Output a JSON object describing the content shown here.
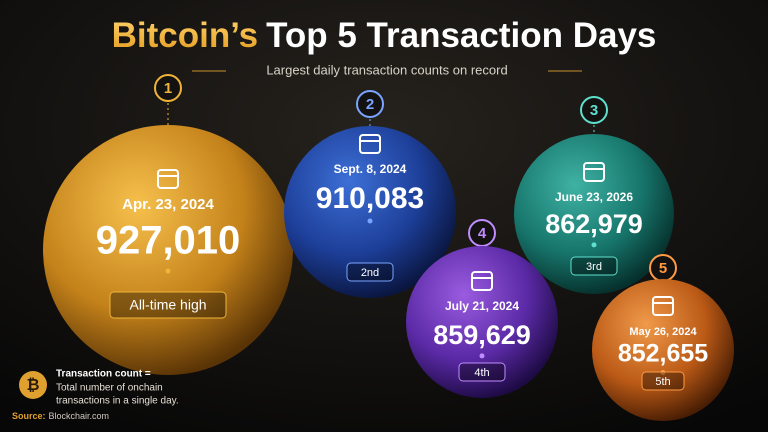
{
  "header": {
    "title_highlight": "Bitcoin’s",
    "title_rest": "Top 5 Transaction Days",
    "subtitle": "Largest daily transaction counts on record"
  },
  "items": [
    {
      "rank": "1",
      "date": "Apr. 23, 2024",
      "count": "927,010",
      "badge": "All-time high"
    },
    {
      "rank": "2",
      "date": "Sept. 8, 2024",
      "count": "910,083",
      "badge": "2nd"
    },
    {
      "rank": "3",
      "date": "June 23, 2026",
      "count": "862,979",
      "badge": "3rd"
    },
    {
      "rank": "4",
      "date": "July 21, 2024",
      "count": "859,629",
      "badge": "4th"
    },
    {
      "rank": "5",
      "date": "May 26, 2024",
      "count": "852,655",
      "badge": "5th"
    }
  ],
  "note": {
    "symbol": "₿",
    "term": "Transaction count =",
    "definition_lines": [
      "Total number of onchain",
      "transactions in a single day."
    ]
  },
  "source": {
    "label": "Source:",
    "text": "Blockchair.com"
  }
}
